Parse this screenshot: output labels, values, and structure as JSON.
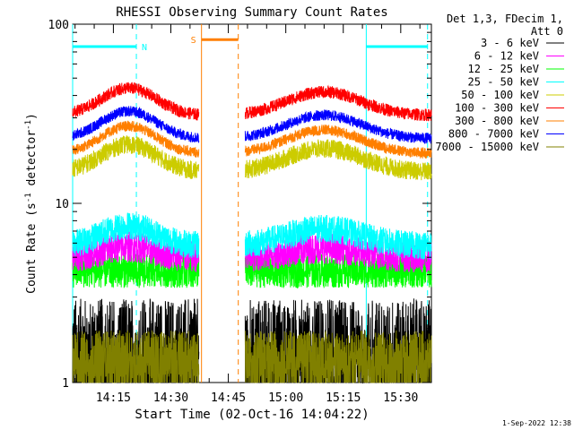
{
  "chart_data": {
    "type": "line",
    "title": "RHESSI Observing Summary Count Rates",
    "xlabel": "Start Time (02-Oct-16 14:04:22)",
    "ylabel_main": "Count Rate (s",
    "ylabel_sup1": "-1",
    "ylabel_mid": " detector",
    "ylabel_sup2": "-1",
    "ylabel_end": ")",
    "y_scale": "log",
    "ylim": [
      1,
      100
    ],
    "xlim_minutes": [
      4.37,
      98.0
    ],
    "x_ticks": [
      {
        "minute": 15,
        "label": "14:15"
      },
      {
        "minute": 30,
        "label": "14:30"
      },
      {
        "minute": 45,
        "label": "14:45"
      },
      {
        "minute": 60,
        "label": "15:00"
      },
      {
        "minute": 75,
        "label": "15:15"
      },
      {
        "minute": 90,
        "label": "15:30"
      }
    ],
    "y_ticks": [
      {
        "value": 1,
        "label": "1"
      },
      {
        "value": 10,
        "label": "10"
      },
      {
        "value": 100,
        "label": "100"
      }
    ],
    "legend_header": [
      "Det 1,3, FDecim 1,",
      "Att 0"
    ],
    "legend_placement": "right",
    "series": [
      {
        "name": "3 - 6 keV",
        "color": "#000000",
        "baseline": 2.0
      },
      {
        "name": "6 - 12 keV",
        "color": "#ff00ff",
        "baseline": 5.2
      },
      {
        "name": "12 - 25 keV",
        "color": "#00ff00",
        "baseline": 4.2
      },
      {
        "name": "25 - 50 keV",
        "color": "#00ffff",
        "baseline": 5.6
      },
      {
        "name": "50 - 100 keV",
        "color": "#cccc00",
        "baseline": 15
      },
      {
        "name": "100 - 300 keV",
        "color": "#ff0000",
        "baseline": 31
      },
      {
        "name": "300 - 800 keV",
        "color": "#ff7f00",
        "baseline": 19
      },
      {
        "name": "800 - 7000 keV",
        "color": "#0000ff",
        "baseline": 22
      },
      {
        "name": "7000 - 15000 keV",
        "color": "#808000",
        "baseline": 1.5
      }
    ],
    "data_segments_minutes": [
      [
        4.37,
        37.3
      ],
      [
        49.4,
        98.0
      ]
    ],
    "annotations": [
      {
        "label": "N",
        "color": "#00ffff",
        "start": 4.37,
        "end": 21.0,
        "value": 75
      },
      {
        "label": "",
        "color": "#00ffff",
        "start": 81.0,
        "end": 97.0,
        "value": 75
      },
      {
        "label": "S",
        "color": "#ff7f00",
        "start": 38.0,
        "end": 47.6,
        "value": 82
      }
    ],
    "vertical_markers": [
      {
        "minute": 21.0,
        "color": "#00ffff",
        "style": "dashed"
      },
      {
        "minute": 81.0,
        "color": "#00ffff",
        "style": "solid"
      },
      {
        "minute": 97.0,
        "color": "#00ffff",
        "style": "dashed"
      },
      {
        "minute": 38.0,
        "color": "#ff7f00",
        "style": "solid"
      },
      {
        "minute": 47.6,
        "color": "#ff7f00",
        "style": "dashed"
      },
      {
        "minute": 4.37,
        "color": "#00ffff",
        "style": "solid"
      }
    ],
    "timestamp": "1-Sep-2022 12:38"
  }
}
